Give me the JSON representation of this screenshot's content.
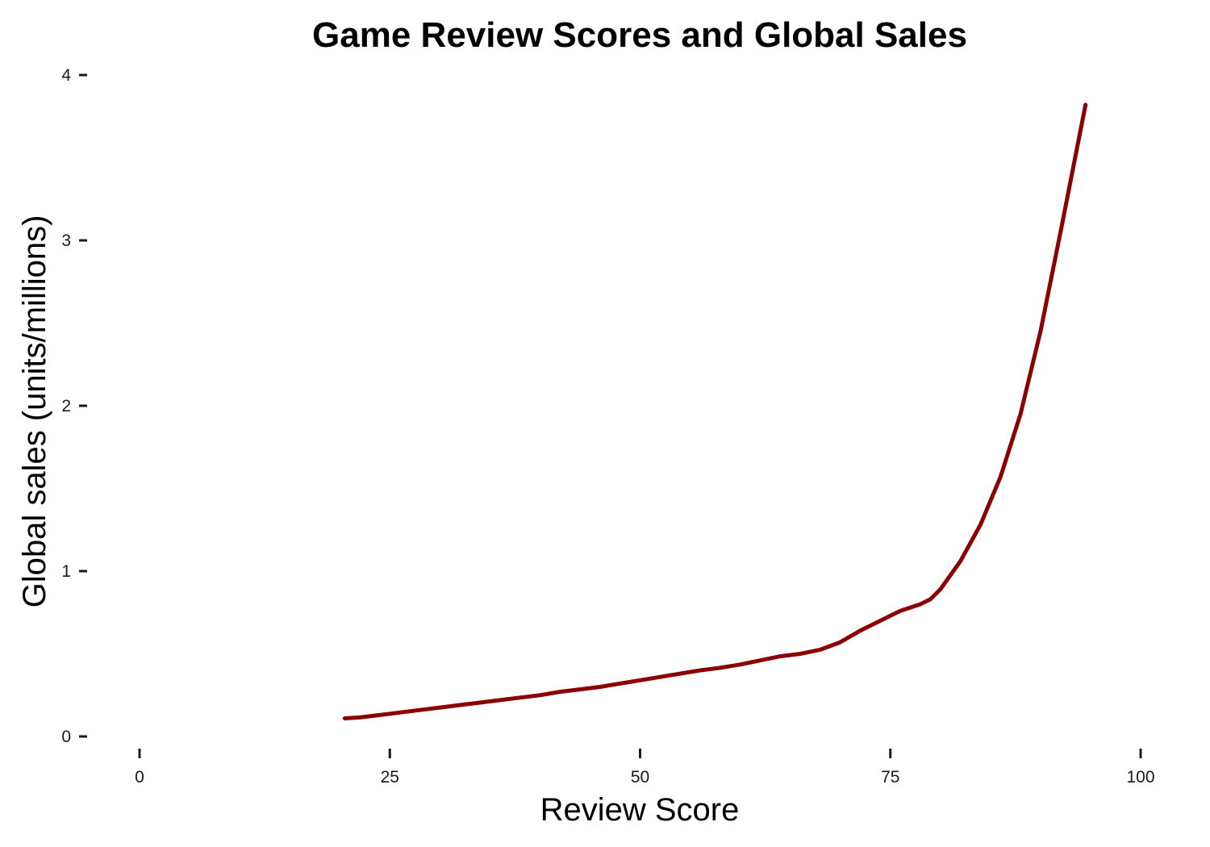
{
  "chart_data": {
    "type": "line",
    "title": "Game Review Scores and Global Sales",
    "xlabel": "Review Score",
    "ylabel": "Global sales (units/millions)",
    "xlim": [
      0,
      100
    ],
    "ylim": [
      0,
      4
    ],
    "x_ticks": [
      0,
      25,
      50,
      75,
      100
    ],
    "y_ticks": [
      0,
      1,
      2,
      3,
      4
    ],
    "x_tick_labels": [
      "0",
      "25",
      "50",
      "75",
      "100"
    ],
    "y_tick_labels": [
      "0",
      "1",
      "2",
      "3",
      "4"
    ],
    "grid": false,
    "legend": "none",
    "line_color": "#8b0000",
    "series": [
      {
        "x": [
          20.5,
          22,
          24,
          26,
          28,
          30,
          32,
          34,
          36,
          38,
          40,
          42,
          44,
          46,
          48,
          50,
          52,
          54,
          56,
          58,
          60,
          62,
          64,
          66,
          68,
          70,
          72,
          74,
          76,
          78,
          79,
          80,
          82,
          84,
          86,
          88,
          90,
          92,
          94.5
        ],
        "y": [
          0.11,
          0.115,
          0.13,
          0.145,
          0.16,
          0.175,
          0.19,
          0.205,
          0.22,
          0.235,
          0.25,
          0.27,
          0.285,
          0.3,
          0.32,
          0.34,
          0.36,
          0.38,
          0.4,
          0.415,
          0.435,
          0.46,
          0.485,
          0.5,
          0.525,
          0.57,
          0.64,
          0.7,
          0.76,
          0.8,
          0.83,
          0.89,
          1.06,
          1.28,
          1.57,
          1.95,
          2.45,
          3.05,
          3.82
        ]
      }
    ]
  }
}
